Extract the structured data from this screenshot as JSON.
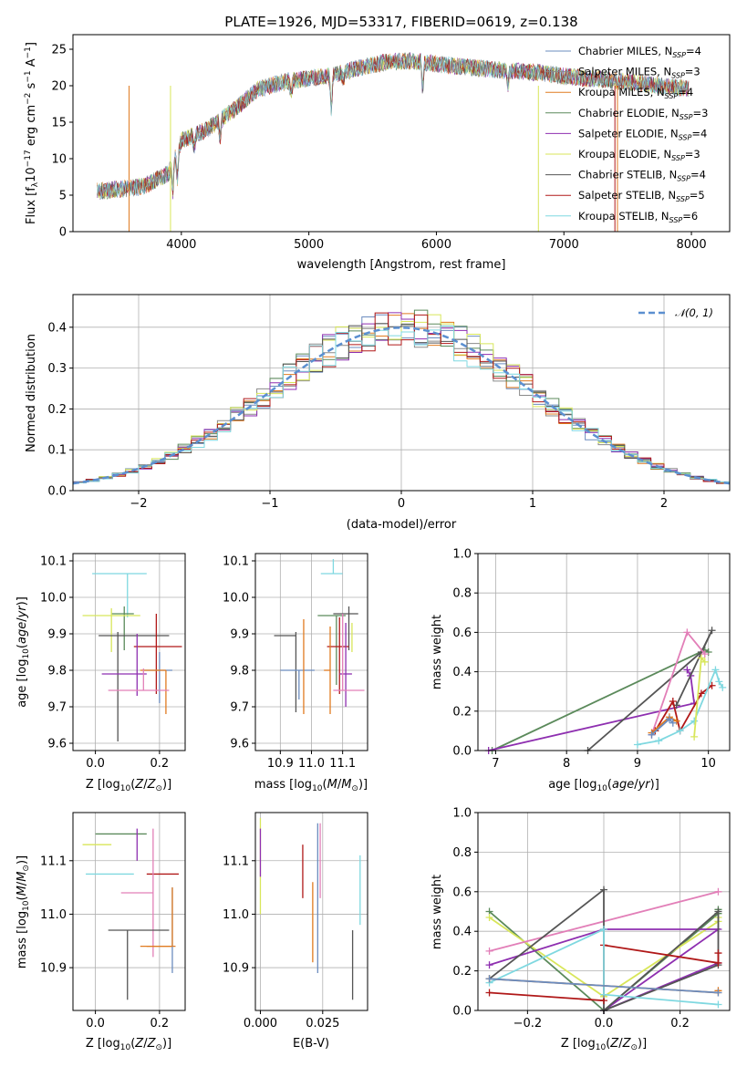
{
  "colors": {
    "chabrier_miles": "#6b8cbf",
    "salpeter_miles": "#8a8a8a",
    "kroupa_miles": "#e07b20",
    "chabrier_elodie": "#5b8a5b",
    "salpeter_elodie": "#8e2fb0",
    "kroupa_elodie": "#d8e65a",
    "chabrier_stelib": "#555555",
    "salpeter_stelib": "#b01818",
    "kroupa_stelib": "#7fd8e0",
    "pink": "#e27fb8",
    "gauss": "#5b8fd0"
  },
  "chart_data": [
    {
      "id": "spectrum",
      "type": "line",
      "title": "PLATE=1926, MJD=53317, FIBERID=0619, z=0.138",
      "xlabel": "wavelength [Angstrom, rest frame]",
      "ylabel": "Flux [f$_\\lambda$10$^{-17}$ erg cm$^{-2}$ s$^{-1}$ A$^{-1}$]",
      "ylabel_parts": {
        "a": "Flux [f",
        "b": "λ",
        "c": "10",
        "d": "−17",
        "e": " erg cm",
        "f": "−2",
        "g": " s",
        "h": "−1",
        "i": " A",
        "j": "−1",
        "k": "]"
      },
      "xlim": [
        3150,
        8300
      ],
      "ylim": [
        0,
        27
      ],
      "xticks": [
        "4000",
        "5000",
        "6000",
        "7000",
        "8000"
      ],
      "yticks": [
        "0",
        "5",
        "10",
        "15",
        "20",
        "25"
      ],
      "legend": [
        {
          "label": "Chabrier MILES, N",
          "sub": "SSP",
          "eq": "=4",
          "color": "#6b8cbf"
        },
        {
          "label": "Salpeter MILES, N",
          "sub": "SSP",
          "eq": "=3",
          "color": "#8a8a8a"
        },
        {
          "label": "Kroupa MILES, N",
          "sub": "SSP",
          "eq": "=4",
          "color": "#e07b20"
        },
        {
          "label": "Chabrier ELODIE, N",
          "sub": "SSP",
          "eq": "=3",
          "color": "#5b8a5b"
        },
        {
          "label": "Salpeter ELODIE, N",
          "sub": "SSP",
          "eq": "=4",
          "color": "#8e2fb0"
        },
        {
          "label": "Kroupa ELODIE, N",
          "sub": "SSP",
          "eq": "=3",
          "color": "#d8e65a"
        },
        {
          "label": "Chabrier STELIB, N",
          "sub": "SSP",
          "eq": "=4",
          "color": "#555555"
        },
        {
          "label": "Salpeter STELIB, N",
          "sub": "SSP",
          "eq": "=5",
          "color": "#b01818"
        },
        {
          "label": "Kroupa STELIB, N",
          "sub": "SSP",
          "eq": "=6",
          "color": "#7fd8e0"
        }
      ],
      "continuum": [
        [
          3340,
          5.5
        ],
        [
          3500,
          5.8
        ],
        [
          3700,
          6.2
        ],
        [
          3900,
          8.0
        ],
        [
          4000,
          12.5
        ],
        [
          4200,
          14.0
        ],
        [
          4400,
          16.5
        ],
        [
          4600,
          19.5
        ],
        [
          4800,
          20.5
        ],
        [
          5000,
          21.0
        ],
        [
          5200,
          21.5
        ],
        [
          5400,
          22.5
        ],
        [
          5600,
          23.2
        ],
        [
          5800,
          23.4
        ],
        [
          6000,
          23.0
        ],
        [
          6200,
          22.6
        ],
        [
          6400,
          22.3
        ],
        [
          6600,
          22.0
        ],
        [
          6800,
          21.8
        ],
        [
          7000,
          21.3
        ],
        [
          7200,
          21.0
        ],
        [
          7400,
          20.7
        ],
        [
          7600,
          20.3
        ],
        [
          7800,
          19.9
        ],
        [
          8000,
          19.5
        ]
      ]
    },
    {
      "id": "residuals",
      "type": "step",
      "xlabel": "(data-model)/error",
      "ylabel": "Normed distribution",
      "xlim": [
        -2.5,
        2.5
      ],
      "ylim": [
        0,
        0.48
      ],
      "xticks": [
        "−2",
        "−1",
        "0",
        "1",
        "2"
      ],
      "yticks": [
        "0.0",
        "0.1",
        "0.2",
        "0.3",
        "0.4"
      ],
      "legend": [
        {
          "label": "𝒩(0, 1)",
          "color": "#5b8fd0"
        }
      ],
      "bin_width": 0.1
    },
    {
      "id": "age-vs-z",
      "type": "errorbar",
      "xlabel": "Z [log10(Z/Z⊙)]",
      "ylabel": "age  [log10(age/yr)]",
      "xlim": [
        -0.07,
        0.28
      ],
      "ylim": [
        9.58,
        10.12
      ],
      "xticks": [
        "0.0",
        "0.2"
      ],
      "yticks": [
        "9.6",
        "9.7",
        "9.8",
        "9.9",
        "10.0",
        "10.1"
      ],
      "points": [
        {
          "x": 0.1,
          "y": 10.065,
          "xerr": [
            0.11,
            0.06
          ],
          "yerr": [
            0.12,
            0.0
          ],
          "color": "#7fd8e0"
        },
        {
          "x": 0.09,
          "y": 9.955,
          "xerr": [
            0.04,
            0.03
          ],
          "yerr": [
            0.1,
            0.02
          ],
          "color": "#5b8a5b"
        },
        {
          "x": 0.05,
          "y": 9.95,
          "xerr": [
            0.09,
            0.09
          ],
          "yerr": [
            0.1,
            0.02
          ],
          "color": "#d8e65a"
        },
        {
          "x": 0.07,
          "y": 9.895,
          "xerr": [
            0.06,
            0.16
          ],
          "yerr": [
            0.29,
            0.01
          ],
          "color": "#555555"
        },
        {
          "x": 0.19,
          "y": 9.865,
          "xerr": [
            0.07,
            0.08
          ],
          "yerr": [
            0.13,
            0.09
          ],
          "color": "#b01818"
        },
        {
          "x": 0.13,
          "y": 9.79,
          "xerr": [
            0.11,
            0.03
          ],
          "yerr": [
            0.06,
            0.11
          ],
          "color": "#8e2fb0"
        },
        {
          "x": 0.2,
          "y": 9.8,
          "xerr": [
            0.05,
            0.04
          ],
          "yerr": [
            0.09,
            0.05
          ],
          "color": "#6b8cbf"
        },
        {
          "x": 0.22,
          "y": 9.8,
          "xerr": [
            0.08,
            0.0
          ],
          "yerr": [
            0.12,
            0.0
          ],
          "color": "#e07b20"
        },
        {
          "x": 0.15,
          "y": 9.745,
          "xerr": [
            0.11,
            0.08
          ],
          "yerr": [
            0.0,
            0.06
          ],
          "color": "#e27fb8"
        }
      ]
    },
    {
      "id": "age-vs-mass",
      "type": "errorbar",
      "xlabel": "mass [log10(M/M⊙)]",
      "ylabel": "",
      "xlim": [
        10.82,
        11.18
      ],
      "ylim": [
        9.58,
        10.12
      ],
      "xticks": [
        "10.9",
        "11.0",
        "11.1"
      ],
      "yticks": [
        "9.6",
        "9.7",
        "9.8",
        "9.9",
        "10.0",
        "10.1"
      ],
      "points": [
        {
          "x": 11.07,
          "y": 10.065,
          "xerr": [
            0.04,
            0.03
          ],
          "yerr": [
            0.0,
            0.04
          ],
          "color": "#7fd8e0"
        },
        {
          "x": 11.12,
          "y": 9.955,
          "xerr": [
            0.05,
            0.03
          ],
          "yerr": [
            0.1,
            0.02
          ],
          "color": "#555555"
        },
        {
          "x": 11.08,
          "y": 9.95,
          "xerr": [
            0.06,
            0.03
          ],
          "yerr": [
            0.19,
            0.0
          ],
          "color": "#5b8a5b"
        },
        {
          "x": 10.95,
          "y": 9.895,
          "xerr": [
            0.07,
            0.0
          ],
          "yerr": [
            0.21,
            0.01
          ],
          "color": "#555555"
        },
        {
          "x": 11.09,
          "y": 9.865,
          "xerr": [
            0.04,
            0.03
          ],
          "yerr": [
            0.13,
            0.08
          ],
          "color": "#b01818"
        },
        {
          "x": 11.11,
          "y": 9.79,
          "xerr": [
            0.02,
            0.02
          ],
          "yerr": [
            0.09,
            0.14
          ],
          "color": "#8e2fb0"
        },
        {
          "x": 10.96,
          "y": 9.8,
          "xerr": [
            0.06,
            0.05
          ],
          "yerr": [
            0.08,
            0.0
          ],
          "color": "#6b8cbf"
        },
        {
          "x": 11.06,
          "y": 9.8,
          "xerr": [
            0.02,
            0.0
          ],
          "yerr": [
            0.12,
            0.12
          ],
          "color": "#e07b20"
        },
        {
          "x": 11.1,
          "y": 9.745,
          "xerr": [
            0.03,
            0.07
          ],
          "yerr": [
            0.0,
            0.21
          ],
          "color": "#e27fb8"
        },
        {
          "x": 11.13,
          "y": 9.9,
          "xerr": [
            0.0,
            0.0
          ],
          "yerr": [
            0.05,
            0.03
          ],
          "color": "#d8e65a"
        },
        {
          "x": 10.975,
          "y": 9.8,
          "xerr": [
            0.0,
            0.0
          ],
          "yerr": [
            0.12,
            0.14
          ],
          "color": "#e07b20"
        }
      ]
    },
    {
      "id": "mass-weight-vs-age",
      "type": "line",
      "xlabel": "age  [log10(age/yr)]",
      "ylabel": "mass weight",
      "xlim": [
        6.75,
        10.3
      ],
      "ylim": [
        0,
        1.0
      ],
      "xticks": [
        "7",
        "8",
        "9",
        "10"
      ],
      "yticks": [
        "0.0",
        "0.2",
        "0.4",
        "0.6",
        "0.8",
        "1.0"
      ],
      "series": [
        {
          "color": "#5b8a5b",
          "x": [
            6.95,
            9.95,
            10.0
          ],
          "y": [
            0.0,
            0.51,
            0.5
          ]
        },
        {
          "color": "#8e2fb0",
          "x": [
            6.9,
            9.8,
            9.75,
            9.7
          ],
          "y": [
            0.0,
            0.24,
            0.38,
            0.41
          ]
        },
        {
          "color": "#555555",
          "x": [
            8.3,
            9.9,
            10.05,
            9.55
          ],
          "y": [
            0.0,
            0.5,
            0.61,
            0.23
          ]
        },
        {
          "color": "#e27fb8",
          "x": [
            9.2,
            9.7,
            9.95
          ],
          "y": [
            0.08,
            0.6,
            0.49
          ]
        },
        {
          "color": "#b01818",
          "x": [
            9.25,
            9.5,
            9.6,
            9.9,
            10.05
          ],
          "y": [
            0.1,
            0.25,
            0.1,
            0.29,
            0.33
          ]
        },
        {
          "color": "#e07b20",
          "x": [
            9.2,
            9.45,
            9.55
          ],
          "y": [
            0.09,
            0.17,
            0.15
          ]
        },
        {
          "color": "#7fd8e0",
          "x": [
            9.0,
            9.3,
            9.6,
            9.8,
            10.1,
            10.15,
            10.2
          ],
          "y": [
            0.03,
            0.05,
            0.1,
            0.15,
            0.41,
            0.35,
            0.32
          ]
        },
        {
          "color": "#d8e65a",
          "x": [
            9.8,
            9.9,
            9.95
          ],
          "y": [
            0.07,
            0.47,
            0.45
          ]
        },
        {
          "color": "#6b8cbf",
          "x": [
            9.2,
            9.45,
            9.5
          ],
          "y": [
            0.08,
            0.16,
            0.14
          ]
        }
      ]
    },
    {
      "id": "mass-vs-z",
      "type": "errorbar",
      "xlabel": "Z [log10(Z/Z⊙)]",
      "ylabel": "mass [log10(M/M⊙)]",
      "xlim": [
        -0.07,
        0.28
      ],
      "ylim": [
        10.82,
        11.19
      ],
      "xticks": [
        "0.0",
        "0.2"
      ],
      "yticks": [
        "10.9",
        "11.0",
        "11.1"
      ],
      "points": [
        {
          "x": 0.09,
          "y": 11.15,
          "xerr": [
            0.09,
            0.07
          ],
          "yerr": [
            0.0,
            0.0
          ],
          "color": "#5b8a5b"
        },
        {
          "x": 0.05,
          "y": 11.13,
          "xerr": [
            0.09,
            0.0
          ],
          "yerr": [
            0.0,
            0.0
          ],
          "color": "#d8e65a"
        },
        {
          "x": 0.13,
          "y": 11.1,
          "xerr": [
            0.0,
            0.0
          ],
          "yerr": [
            0.0,
            0.06
          ],
          "color": "#8e2fb0"
        },
        {
          "x": 0.07,
          "y": 11.075,
          "xerr": [
            0.1,
            0.05
          ],
          "yerr": [
            0.0,
            0.0
          ],
          "color": "#7fd8e0"
        },
        {
          "x": 0.21,
          "y": 11.075,
          "xerr": [
            0.05,
            0.05
          ],
          "yerr": [
            0.0,
            0.0
          ],
          "color": "#b01818"
        },
        {
          "x": 0.18,
          "y": 11.04,
          "xerr": [
            0.1,
            0.0
          ],
          "yerr": [
            0.12,
            0.12
          ],
          "color": "#e27fb8"
        },
        {
          "x": 0.1,
          "y": 10.97,
          "xerr": [
            0.06,
            0.13
          ],
          "yerr": [
            0.13,
            0.0
          ],
          "color": "#555555"
        },
        {
          "x": 0.16,
          "y": 10.94,
          "xerr": [
            0.0,
            0.09
          ],
          "yerr": [
            0.0,
            0.0
          ],
          "color": "#e07b20"
        },
        {
          "x": 0.24,
          "y": 10.94,
          "xerr": [
            0.0,
            0.0
          ],
          "yerr": [
            0.05,
            0.11
          ],
          "color": "#6b8cbf"
        },
        {
          "x": 0.24,
          "y": 10.94,
          "xerr": [
            0.1,
            0.0
          ],
          "yerr": [
            0.0,
            0.11
          ],
          "color": "#e07b20"
        }
      ]
    },
    {
      "id": "ebv",
      "type": "errorbar",
      "xlabel": "E(B-V)",
      "ylabel": "",
      "xlim": [
        -0.002,
        0.043
      ],
      "ylim": [
        10.82,
        11.19
      ],
      "xticks": [
        "0.000",
        "0.025"
      ],
      "yticks": [
        "10.9",
        "11.0",
        "11.1"
      ],
      "points": [
        {
          "x": 0.0,
          "y": 11.1,
          "xerr": [
            0.0,
            0.0
          ],
          "yerr": [
            0.1,
            0.08
          ],
          "color": "#d8e65a"
        },
        {
          "x": 0.0,
          "y": 11.12,
          "xerr": [
            0.0,
            0.0
          ],
          "yerr": [
            0.05,
            0.04
          ],
          "color": "#8e2fb0"
        },
        {
          "x": 0.017,
          "y": 11.1,
          "xerr": [
            0.0,
            0.0
          ],
          "yerr": [
            0.07,
            0.03
          ],
          "color": "#b01818"
        },
        {
          "x": 0.021,
          "y": 11.0,
          "xerr": [
            0.0,
            0.0
          ],
          "yerr": [
            0.09,
            0.06
          ],
          "color": "#e07b20"
        },
        {
          "x": 0.023,
          "y": 11.05,
          "xerr": [
            0.0,
            0.0
          ],
          "yerr": [
            0.16,
            0.12
          ],
          "color": "#6b8cbf"
        },
        {
          "x": 0.024,
          "y": 11.1,
          "xerr": [
            0.0,
            0.0
          ],
          "yerr": [
            0.07,
            0.07
          ],
          "color": "#e27fb8"
        },
        {
          "x": 0.037,
          "y": 10.92,
          "xerr": [
            0.0,
            0.0
          ],
          "yerr": [
            0.08,
            0.05
          ],
          "color": "#555555"
        },
        {
          "x": 0.04,
          "y": 11.06,
          "xerr": [
            0.0,
            0.0
          ],
          "yerr": [
            0.08,
            0.05
          ],
          "color": "#7fd8e0"
        }
      ]
    },
    {
      "id": "mass-weight-vs-z",
      "type": "line",
      "xlabel": "Z [log10(Z/Z⊙)]",
      "ylabel": "mass weight",
      "xlim": [
        -0.33,
        0.33
      ],
      "ylim": [
        0,
        1.0
      ],
      "xticks": [
        "−0.2",
        "0.0",
        "0.2"
      ],
      "yticks": [
        "0.0",
        "0.2",
        "0.4",
        "0.6",
        "0.8",
        "1.0"
      ],
      "series": [
        {
          "color": "#5b8a5b",
          "x": [
            -0.3,
            0.0,
            0.3,
            0.3
          ],
          "y": [
            0.5,
            0.0,
            0.49,
            0.51
          ]
        },
        {
          "color": "#d8e65a",
          "x": [
            -0.3,
            0.0,
            0.3,
            0.3
          ],
          "y": [
            0.47,
            0.07,
            0.45,
            0.47
          ]
        },
        {
          "color": "#e27fb8",
          "x": [
            -0.3,
            0.3
          ],
          "y": [
            0.3,
            0.6
          ]
        },
        {
          "color": "#8e2fb0",
          "x": [
            -0.3,
            0.0,
            0.3,
            0.0,
            0.3
          ],
          "y": [
            0.23,
            0.41,
            0.41,
            0.0,
            0.24
          ]
        },
        {
          "color": "#555555",
          "x": [
            -0.3,
            0.0,
            0.0,
            0.3,
            0.3,
            0.0
          ],
          "y": [
            0.16,
            0.61,
            0.0,
            0.23,
            0.5,
            0.0
          ]
        },
        {
          "color": "#b01818",
          "x": [
            -0.3,
            0.0,
            0.0,
            0.3,
            0.3
          ],
          "y": [
            0.09,
            0.05,
            0.33,
            0.24,
            0.29
          ]
        },
        {
          "color": "#7fd8e0",
          "x": [
            -0.3,
            0.0,
            0.0,
            0.3
          ],
          "y": [
            0.14,
            0.41,
            0.08,
            0.03
          ]
        },
        {
          "color": "#e07b20",
          "x": [
            -0.3,
            0.3,
            0.3
          ],
          "y": [
            0.16,
            0.09,
            0.1
          ]
        },
        {
          "color": "#6b8cbf",
          "x": [
            -0.3,
            0.3
          ],
          "y": [
            0.16,
            0.09
          ]
        }
      ]
    }
  ]
}
